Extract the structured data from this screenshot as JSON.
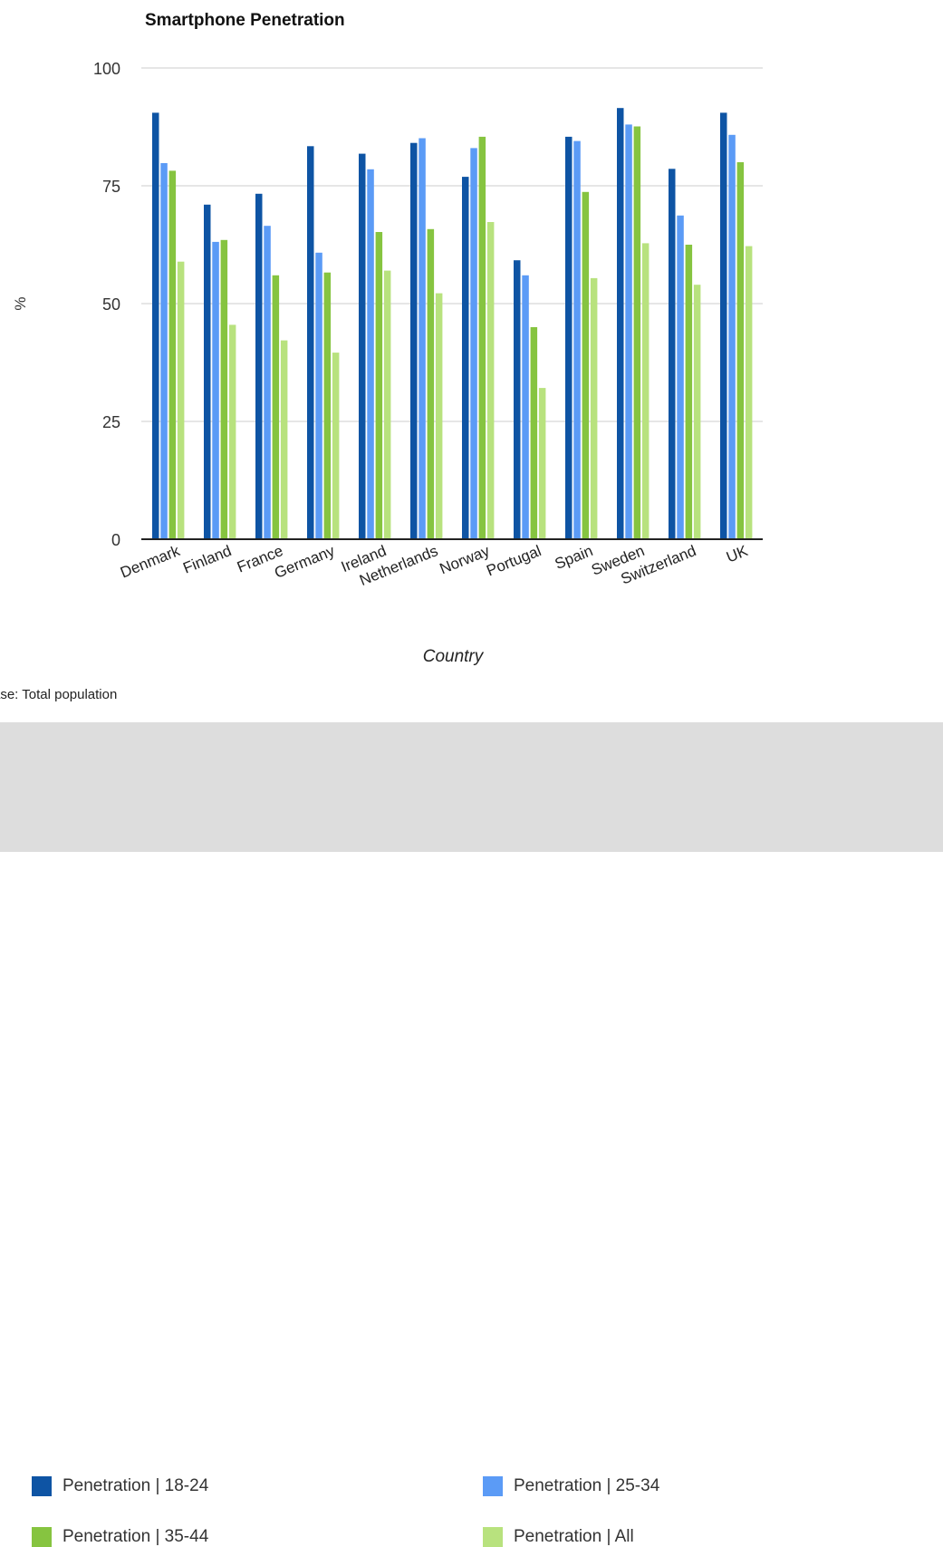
{
  "chart_data": {
    "type": "bar",
    "title": "Smartphone Penetration",
    "xlabel": "Country",
    "ylabel": "%",
    "ylim": [
      0,
      100
    ],
    "yticks": [
      "0",
      "25",
      "50",
      "75",
      "100"
    ],
    "grid": true,
    "legend_placement": "bottom",
    "categories": [
      "Denmark",
      "Finland",
      "France",
      "Germany",
      "Ireland",
      "Netherlands",
      "Norway",
      "Portugal",
      "Spain",
      "Sweden",
      "Switzerland",
      "UK"
    ],
    "series": [
      {
        "name": "Penetration | 18-24",
        "color": "#0e54a4",
        "values": [
          90.5,
          71,
          73.3,
          83.4,
          81.8,
          84.1,
          76.9,
          59.2,
          85.4,
          91.5,
          78.6,
          90.5
        ]
      },
      {
        "name": "Penetration | 25-34",
        "color": "#5b9bf6",
        "values": [
          79.8,
          63.1,
          66.5,
          60.8,
          78.5,
          85.1,
          83,
          56,
          84.5,
          88,
          68.7,
          85.8
        ]
      },
      {
        "name": "Penetration | 35-44",
        "color": "#86c440",
        "values": [
          78.2,
          63.5,
          56,
          56.6,
          65.2,
          65.8,
          85.4,
          45,
          73.7,
          87.6,
          62.5,
          80
        ]
      },
      {
        "name": "Penetration | All",
        "color": "#b8e27e",
        "values": [
          58.9,
          45.5,
          42.2,
          39.6,
          57,
          52.2,
          67.3,
          32.1,
          55.4,
          62.8,
          54,
          62.2
        ]
      }
    ],
    "footnote": "ase: Total population"
  }
}
